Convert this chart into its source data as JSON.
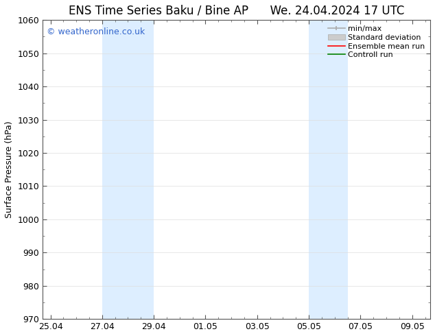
{
  "title_left": "ENS Time Series Baku / Bine AP",
  "title_right": "We. 24.04.2024 17 UTC",
  "ylabel": "Surface Pressure (hPa)",
  "ylim": [
    970,
    1060
  ],
  "yticks": [
    970,
    980,
    990,
    1000,
    1010,
    1020,
    1030,
    1040,
    1050,
    1060
  ],
  "xtick_labels": [
    "25.04",
    "27.04",
    "29.04",
    "01.05",
    "03.05",
    "05.05",
    "07.05",
    "09.05"
  ],
  "xtick_positions": [
    0,
    2,
    4,
    6,
    8,
    10,
    12,
    14
  ],
  "xlim": [
    -0.3,
    14.7
  ],
  "shaded_bands": [
    {
      "x_start": 2.0,
      "x_end": 4.0
    },
    {
      "x_start": 10.0,
      "x_end": 11.5
    }
  ],
  "shaded_color": "#ddeeff",
  "watermark_text": "© weatheronline.co.uk",
  "watermark_color": "#3366cc",
  "watermark_fontsize": 9,
  "legend_labels": [
    "min/max",
    "Standard deviation",
    "Ensemble mean run",
    "Controll run"
  ],
  "legend_line_colors": [
    "#aaaaaa",
    "#cccccc",
    "red",
    "green"
  ],
  "bg_color": "#ffffff",
  "grid_color": "#dddddd",
  "title_fontsize": 12,
  "axis_label_fontsize": 9,
  "tick_fontsize": 9,
  "legend_fontsize": 8
}
